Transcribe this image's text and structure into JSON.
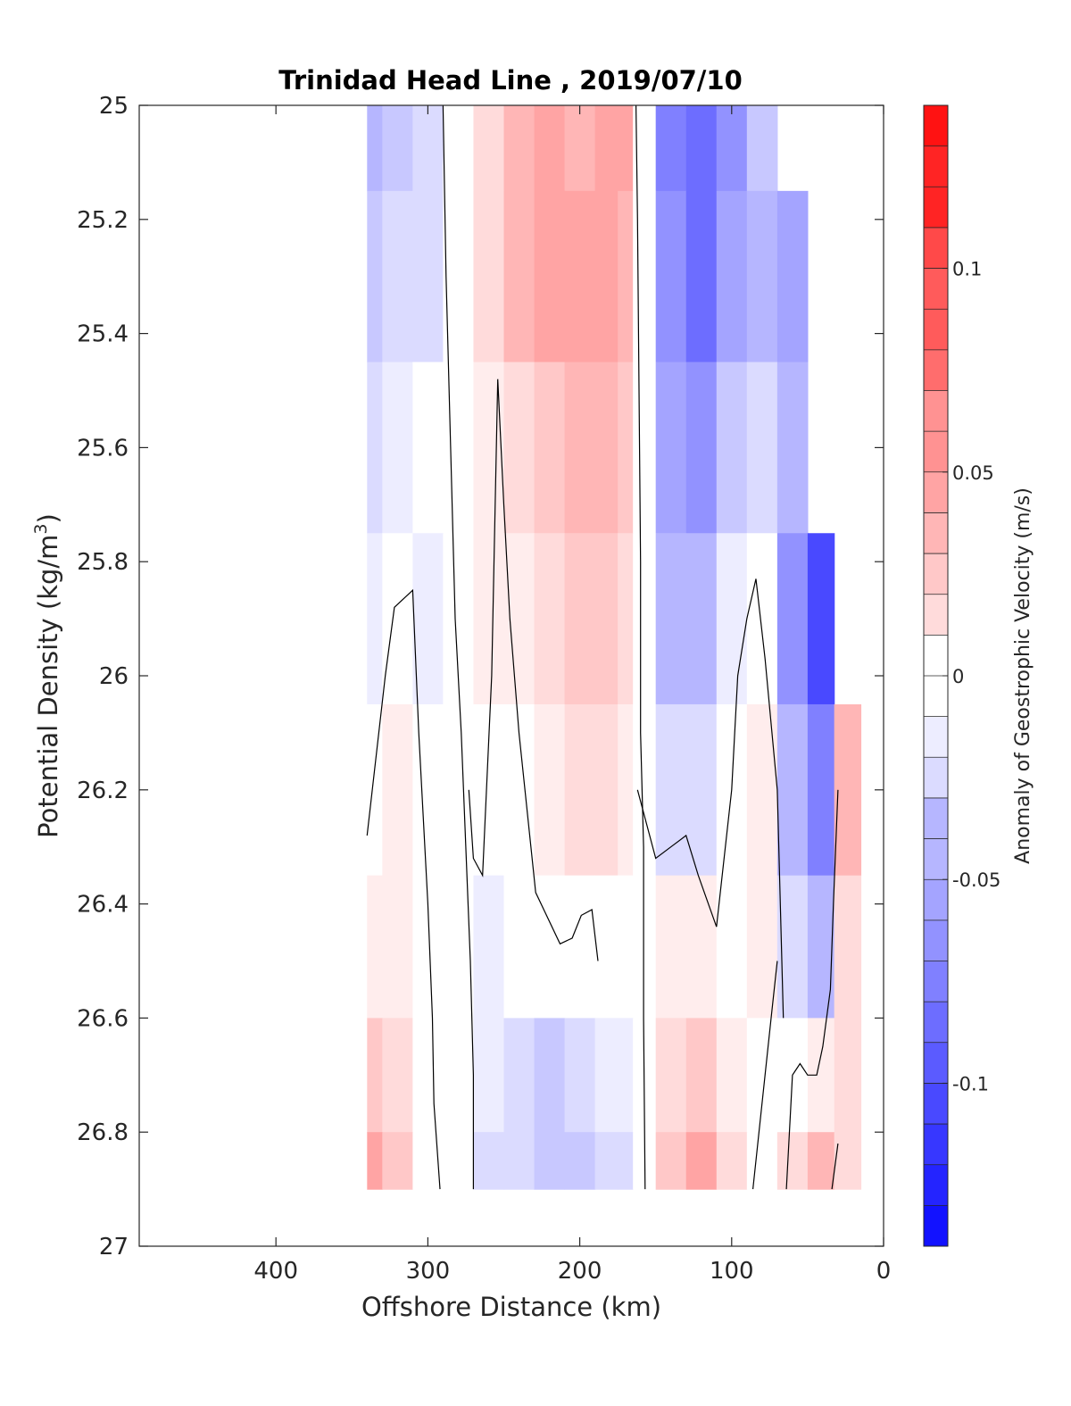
{
  "chart_data": {
    "type": "heatmap",
    "title": "Trinidad Head Line , 2019/07/10",
    "xlabel": "Offshore Distance (km)",
    "ylabel_prefix": "Potential Density (kg/m",
    "ylabel_sup": "3",
    "ylabel_suffix": ")",
    "colorbar_label": "Anomaly of Geostrophic Velocity (m/s)",
    "xlim": [
      490,
      0
    ],
    "x_reversed": true,
    "ylim": [
      25,
      27
    ],
    "y_reversed": true,
    "x_ticks": [
      "400",
      "300",
      "200",
      "100",
      "0"
    ],
    "x_tick_values": [
      400,
      300,
      200,
      100,
      0
    ],
    "y_ticks": [
      "25",
      "25.2",
      "25.4",
      "25.6",
      "25.8",
      "26",
      "26.2",
      "26.4",
      "26.6",
      "26.8",
      "27"
    ],
    "y_tick_values": [
      25,
      25.2,
      25.4,
      25.6,
      25.8,
      26,
      26.2,
      26.4,
      26.6,
      26.8,
      27
    ],
    "colorbar": {
      "range": [
        -0.14,
        0.14
      ],
      "step": 0.01,
      "ticks": [
        "0.1",
        "0.05",
        "0",
        "-0.05",
        "-0.1"
      ],
      "tick_values": [
        0.1,
        0.05,
        0,
        -0.05,
        -0.1
      ],
      "negative_color": "#0000ff",
      "positive_color": "#ff0000",
      "zero_color": "#ffffff"
    },
    "grid": false,
    "bands": [
      {
        "density": 25.0,
        "values": [
          -0.04,
          -0.03,
          -0.02,
          0.0,
          0.02,
          0.04,
          0.05,
          0.04,
          0.05,
          0.05,
          0.0,
          -0.07,
          -0.08,
          -0.06,
          -0.03,
          null,
          null,
          null
        ]
      },
      {
        "density": 25.3,
        "values": [
          -0.03,
          -0.02,
          -0.02,
          0.0,
          0.02,
          0.04,
          0.05,
          0.05,
          0.05,
          0.04,
          0.0,
          -0.06,
          -0.08,
          -0.05,
          -0.04,
          -0.05,
          null,
          null
        ]
      },
      {
        "density": 25.6,
        "values": [
          -0.02,
          -0.01,
          0.0,
          0.0,
          0.01,
          0.02,
          0.03,
          0.04,
          0.04,
          0.03,
          0.0,
          -0.05,
          -0.06,
          -0.03,
          -0.02,
          -0.04,
          null,
          null
        ]
      },
      {
        "density": 25.9,
        "values": [
          -0.01,
          0.0,
          -0.01,
          0.0,
          0.01,
          0.01,
          0.02,
          0.03,
          0.03,
          0.02,
          0.0,
          -0.04,
          -0.04,
          -0.01,
          0.0,
          -0.06,
          -0.1,
          null
        ]
      },
      {
        "density": 26.2,
        "values": [
          0.0,
          0.01,
          0.0,
          0.0,
          0.0,
          0.0,
          0.01,
          0.02,
          0.02,
          0.01,
          0.0,
          -0.02,
          -0.02,
          0.0,
          0.01,
          -0.04,
          -0.07,
          0.04
        ]
      },
      {
        "density": 26.5,
        "values": [
          0.01,
          0.01,
          0.0,
          0.0,
          -0.01,
          0.0,
          0.0,
          0.0,
          0.0,
          0.0,
          0.0,
          0.01,
          0.01,
          0.0,
          0.01,
          -0.02,
          -0.04,
          0.02
        ]
      },
      {
        "density": 26.7,
        "values": [
          0.03,
          0.02,
          0.0,
          0.0,
          -0.01,
          -0.02,
          -0.03,
          -0.02,
          -0.01,
          -0.01,
          0.0,
          0.02,
          0.03,
          0.01,
          0.0,
          0.0,
          0.01,
          0.02
        ]
      },
      {
        "density": 26.9,
        "values": [
          0.05,
          0.03,
          0.0,
          0.0,
          -0.02,
          -0.02,
          -0.03,
          -0.03,
          -0.02,
          -0.02,
          0.0,
          0.03,
          0.05,
          0.02,
          0.0,
          0.02,
          0.04,
          0.02
        ]
      }
    ],
    "station_distances": [
      340,
      320,
      300,
      280,
      260,
      240,
      220,
      200,
      180,
      170,
      160,
      140,
      120,
      100,
      80,
      60,
      40,
      25
    ],
    "contours_zero": [
      {
        "x": [
          290,
          288,
          285,
          282,
          278,
          275,
          272,
          270,
          270
        ],
        "y": [
          25.0,
          25.3,
          25.6,
          25.9,
          26.1,
          26.3,
          26.5,
          26.7,
          26.9
        ]
      },
      {
        "x": [
          340,
          328,
          322,
          310,
          306,
          300,
          297,
          296,
          292
        ],
        "y": [
          26.28,
          26.0,
          25.88,
          25.85,
          26.1,
          26.4,
          26.6,
          26.75,
          26.9
        ]
      },
      {
        "x": [
          273,
          270,
          264,
          258,
          254,
          250,
          246,
          240,
          229,
          213,
          205,
          199,
          192,
          188
        ],
        "y": [
          26.2,
          26.32,
          26.35,
          26.0,
          25.48,
          25.7,
          25.9,
          26.1,
          26.38,
          26.47,
          26.46,
          26.42,
          26.41,
          26.5
        ]
      },
      {
        "x": [
          163,
          162,
          161,
          160,
          160,
          158,
          158,
          157
        ],
        "y": [
          25.0,
          25.2,
          25.5,
          25.8,
          26.1,
          26.3,
          26.6,
          26.9
        ]
      },
      {
        "x": [
          162,
          150,
          140,
          130,
          122,
          110,
          100,
          96,
          90,
          84,
          78,
          70,
          66
        ],
        "y": [
          26.2,
          26.32,
          26.3,
          26.28,
          26.35,
          26.44,
          26.2,
          26.0,
          25.9,
          25.83,
          25.97,
          26.2,
          26.6
        ]
      },
      {
        "x": [
          64,
          60,
          55,
          50,
          44,
          40,
          35,
          33,
          30
        ],
        "y": [
          26.9,
          26.7,
          26.68,
          26.7,
          26.7,
          26.65,
          26.55,
          26.4,
          26.2
        ]
      },
      {
        "x": [
          86,
          82,
          78,
          74,
          70
        ],
        "y": [
          26.9,
          26.8,
          26.7,
          26.6,
          26.5
        ]
      },
      {
        "x": [
          34,
          33,
          32,
          31,
          30
        ],
        "y": [
          26.9,
          26.88,
          26.86,
          26.84,
          26.82
        ]
      }
    ]
  }
}
